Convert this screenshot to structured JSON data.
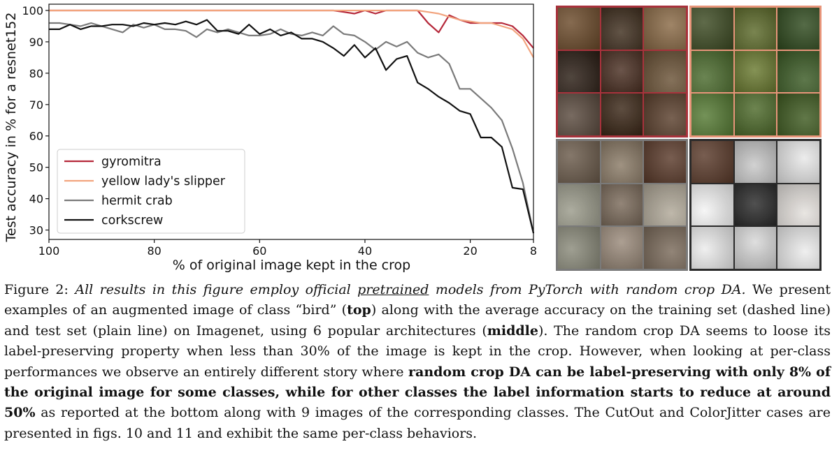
{
  "chart_data": {
    "type": "line",
    "title": "",
    "xlabel": "% of original image kept in the crop",
    "ylabel": "Test accuracy in % for a resnet152",
    "xlim": [
      100,
      8
    ],
    "ylim": [
      27,
      102
    ],
    "xticks": [
      100,
      80,
      60,
      40,
      20,
      8
    ],
    "yticks": [
      30,
      40,
      50,
      60,
      70,
      80,
      90,
      100
    ],
    "grid": false,
    "legend_position": "bottom-left",
    "x": [
      100,
      98,
      96,
      94,
      92,
      90,
      88,
      86,
      84,
      82,
      80,
      78,
      76,
      74,
      72,
      70,
      68,
      66,
      64,
      62,
      60,
      58,
      56,
      54,
      52,
      50,
      48,
      46,
      44,
      42,
      40,
      38,
      36,
      34,
      32,
      30,
      28,
      26,
      24,
      22,
      20,
      18,
      16,
      14,
      12,
      10,
      8
    ],
    "series": [
      {
        "name": "gyromitra",
        "color": "#b5283a",
        "values": [
          100,
          100,
          100,
          100,
          100,
          100,
          100,
          100,
          100,
          100,
          100,
          100,
          100,
          100,
          100,
          100,
          100,
          100,
          100,
          100,
          100,
          100,
          100,
          100,
          100,
          100,
          100,
          100,
          99.5,
          99,
          100,
          99,
          100,
          100,
          100,
          100,
          96,
          93,
          98.5,
          97,
          96,
          96,
          96,
          96,
          95,
          92,
          88
        ]
      },
      {
        "name": "yellow lady's slipper",
        "color": "#f2a47e",
        "values": [
          100,
          100,
          100,
          100,
          100,
          100,
          100,
          100,
          100,
          100,
          100,
          100,
          100,
          100,
          100,
          100,
          100,
          100,
          100,
          100,
          100,
          100,
          100,
          100,
          100,
          100,
          100,
          100,
          100,
          100,
          100,
          100,
          100,
          100,
          100,
          100,
          99.5,
          99,
          98,
          97,
          96.5,
          96,
          96,
          95,
          94,
          91,
          85
        ]
      },
      {
        "name": "hermit crab",
        "color": "#7a7a7a",
        "values": [
          96,
          96,
          95.5,
          95,
          96,
          95,
          94,
          93,
          95.5,
          94.5,
          95.5,
          94,
          94,
          93.5,
          91.5,
          94,
          93,
          94,
          93,
          92,
          92,
          92.5,
          94,
          92.5,
          92,
          93,
          92,
          95,
          92.5,
          92,
          90,
          87.5,
          90,
          88.5,
          90,
          86.5,
          85,
          86,
          83,
          75,
          75,
          72,
          69,
          65,
          56,
          45,
          29
        ]
      },
      {
        "name": "corkscrew",
        "color": "#111111",
        "values": [
          94,
          94,
          95.5,
          94,
          95,
          95,
          95.5,
          95.5,
          95,
          96,
          95.5,
          96,
          95.5,
          96.5,
          95.5,
          97,
          93.5,
          93.5,
          92.5,
          95.5,
          92.5,
          94,
          92,
          93,
          91,
          91,
          90,
          88,
          85.5,
          89,
          85,
          88,
          81,
          84.5,
          85.5,
          77,
          75,
          72.5,
          70.5,
          68,
          67,
          59.5,
          59.5,
          56.5,
          43.5,
          43,
          29
        ]
      }
    ]
  },
  "galleries": [
    {
      "class_name": "gyromitra",
      "border": "#a8323c",
      "tiles": [
        "#6b4a2a",
        "#3f2e1e",
        "#8a6a46",
        "#2a1d14",
        "#4a2f22",
        "#6a5236",
        "#5a4a3e",
        "#3a2616",
        "#5a3f2c"
      ]
    },
    {
      "class_name": "yellow lady's slipper",
      "border": "#e8957a",
      "tiles": [
        "#3c4a22",
        "#5c6a2a",
        "#2f4a1e",
        "#4a6a2c",
        "#6a7a30",
        "#3a5a24",
        "#557a33",
        "#4d6a2a",
        "#3e5a20"
      ]
    },
    {
      "class_name": "hermit crab",
      "border": "#7a7a7a",
      "tiles": [
        "#6a5a4a",
        "#8a7a66",
        "#5a3a2a",
        "#9a9a8a",
        "#7a6a5a",
        "#b0a898",
        "#8a8a7a",
        "#9a8a7a",
        "#7a6a5a"
      ]
    },
    {
      "class_name": "corkscrew",
      "border": "#2a2a2a",
      "tiles": [
        "#5a3a2a",
        "#c8c8c8",
        "#e8e8e8",
        "#f4f4f4",
        "#2a2a2a",
        "#e4e0dc",
        "#ececec",
        "#d8d8d8",
        "#ececec"
      ]
    }
  ],
  "caption": {
    "figure_label": "Figure 2:",
    "italic_1": "All results in this figure employ official",
    "italic_underlined": "pretrained",
    "italic_2": "models from PyTorch with random crop DA.",
    "text_1": "We present examples of an augmented image of class “bird” (",
    "bold_top": "top",
    "text_2": ") along with the average accuracy on the training set (dashed line) and test set (plain line) on Imagenet, using 6 popular architectures (",
    "bold_middle": "middle",
    "text_3": "). The random crop DA seems to loose its label-preserving property when less than 30% of the image is kept in the crop. However, when looking at per-class performances we observe an entirely different story where",
    "bold_claim": "random crop DA can be label-preserving with only 8% of the original image for some classes, while for other classes the label information starts to reduce at around 50%",
    "text_4": "as reported at the bottom along with 9 images of the corresponding classes. The CutOut and ColorJitter cases are presented in figs. 10 and 11 and exhibit the same per-class behaviors."
  }
}
